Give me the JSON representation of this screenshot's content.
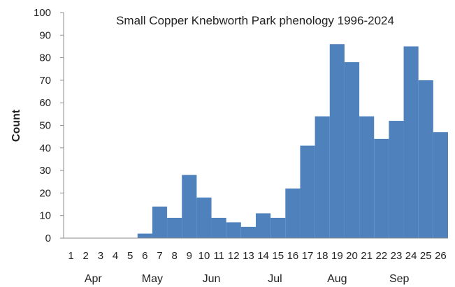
{
  "chart_data": {
    "type": "bar",
    "title": "Small Copper Knebworth Park phenology 1996-2024",
    "xlabel": "",
    "ylabel": "Count",
    "ylim": [
      0,
      100
    ],
    "yticks": [
      0,
      10,
      20,
      30,
      40,
      50,
      60,
      70,
      80,
      90,
      100
    ],
    "categories": [
      "1",
      "2",
      "3",
      "4",
      "5",
      "6",
      "7",
      "8",
      "9",
      "10",
      "11",
      "12",
      "13",
      "14",
      "15",
      "16",
      "17",
      "18",
      "19",
      "20",
      "21",
      "22",
      "23",
      "24",
      "25",
      "26"
    ],
    "values": [
      0,
      0,
      0,
      0,
      0,
      2,
      14,
      9,
      28,
      18,
      9,
      7,
      5,
      11,
      9,
      22,
      41,
      54,
      86,
      78,
      54,
      44,
      52,
      85,
      70,
      47
    ],
    "month_labels": [
      {
        "label": "Apr",
        "week": 2.5
      },
      {
        "label": "May",
        "week": 6.5
      },
      {
        "label": "Jun",
        "week": 10.5
      },
      {
        "label": "Jul",
        "week": 14.8
      },
      {
        "label": "Aug",
        "week": 19
      },
      {
        "label": "Sep",
        "week": 23.2
      }
    ],
    "bar_color": "#4f81bd",
    "grid": false,
    "legend": "none"
  }
}
